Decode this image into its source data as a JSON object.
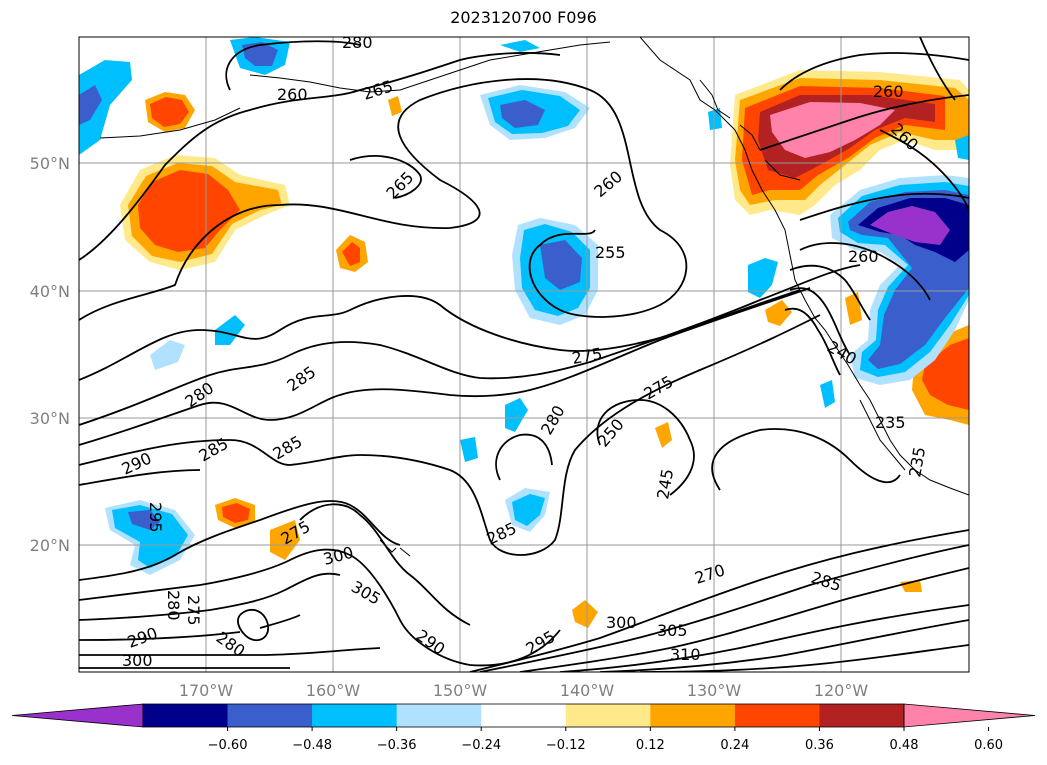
{
  "title": "2023120700 F096",
  "lat_labels": [
    "50°N",
    "40°N",
    "30°N",
    "20°N"
  ],
  "lon_labels": [
    "170°W",
    "160°W",
    "150°W",
    "140°W",
    "130°W",
    "120°W"
  ],
  "contour_labels": [
    "260",
    "265",
    "265",
    "260",
    "255",
    "260",
    "260",
    "260",
    "275",
    "280",
    "285",
    "280",
    "290",
    "285",
    "285",
    "295",
    "280",
    "250",
    "275",
    "245",
    "240",
    "235",
    "235",
    "285",
    "275",
    "300",
    "305",
    "270",
    "285",
    "290",
    "295",
    "300",
    "305",
    "310",
    "280",
    "275",
    "290",
    "300",
    "280",
    "260"
  ],
  "colorbar": {
    "ticks": [
      "−0.60",
      "−0.48",
      "−0.36",
      "−0.24",
      "−0.12",
      "0.12",
      "0.24",
      "0.36",
      "0.48",
      "0.60"
    ],
    "colors": [
      "#9932cc",
      "#00008b",
      "#3a5fcd",
      "#00bfff",
      "#b0e2ff",
      "#ffffff",
      "#ffe98a",
      "#ffa500",
      "#ff4500",
      "#b22222",
      "#ff82ab"
    ]
  }
}
